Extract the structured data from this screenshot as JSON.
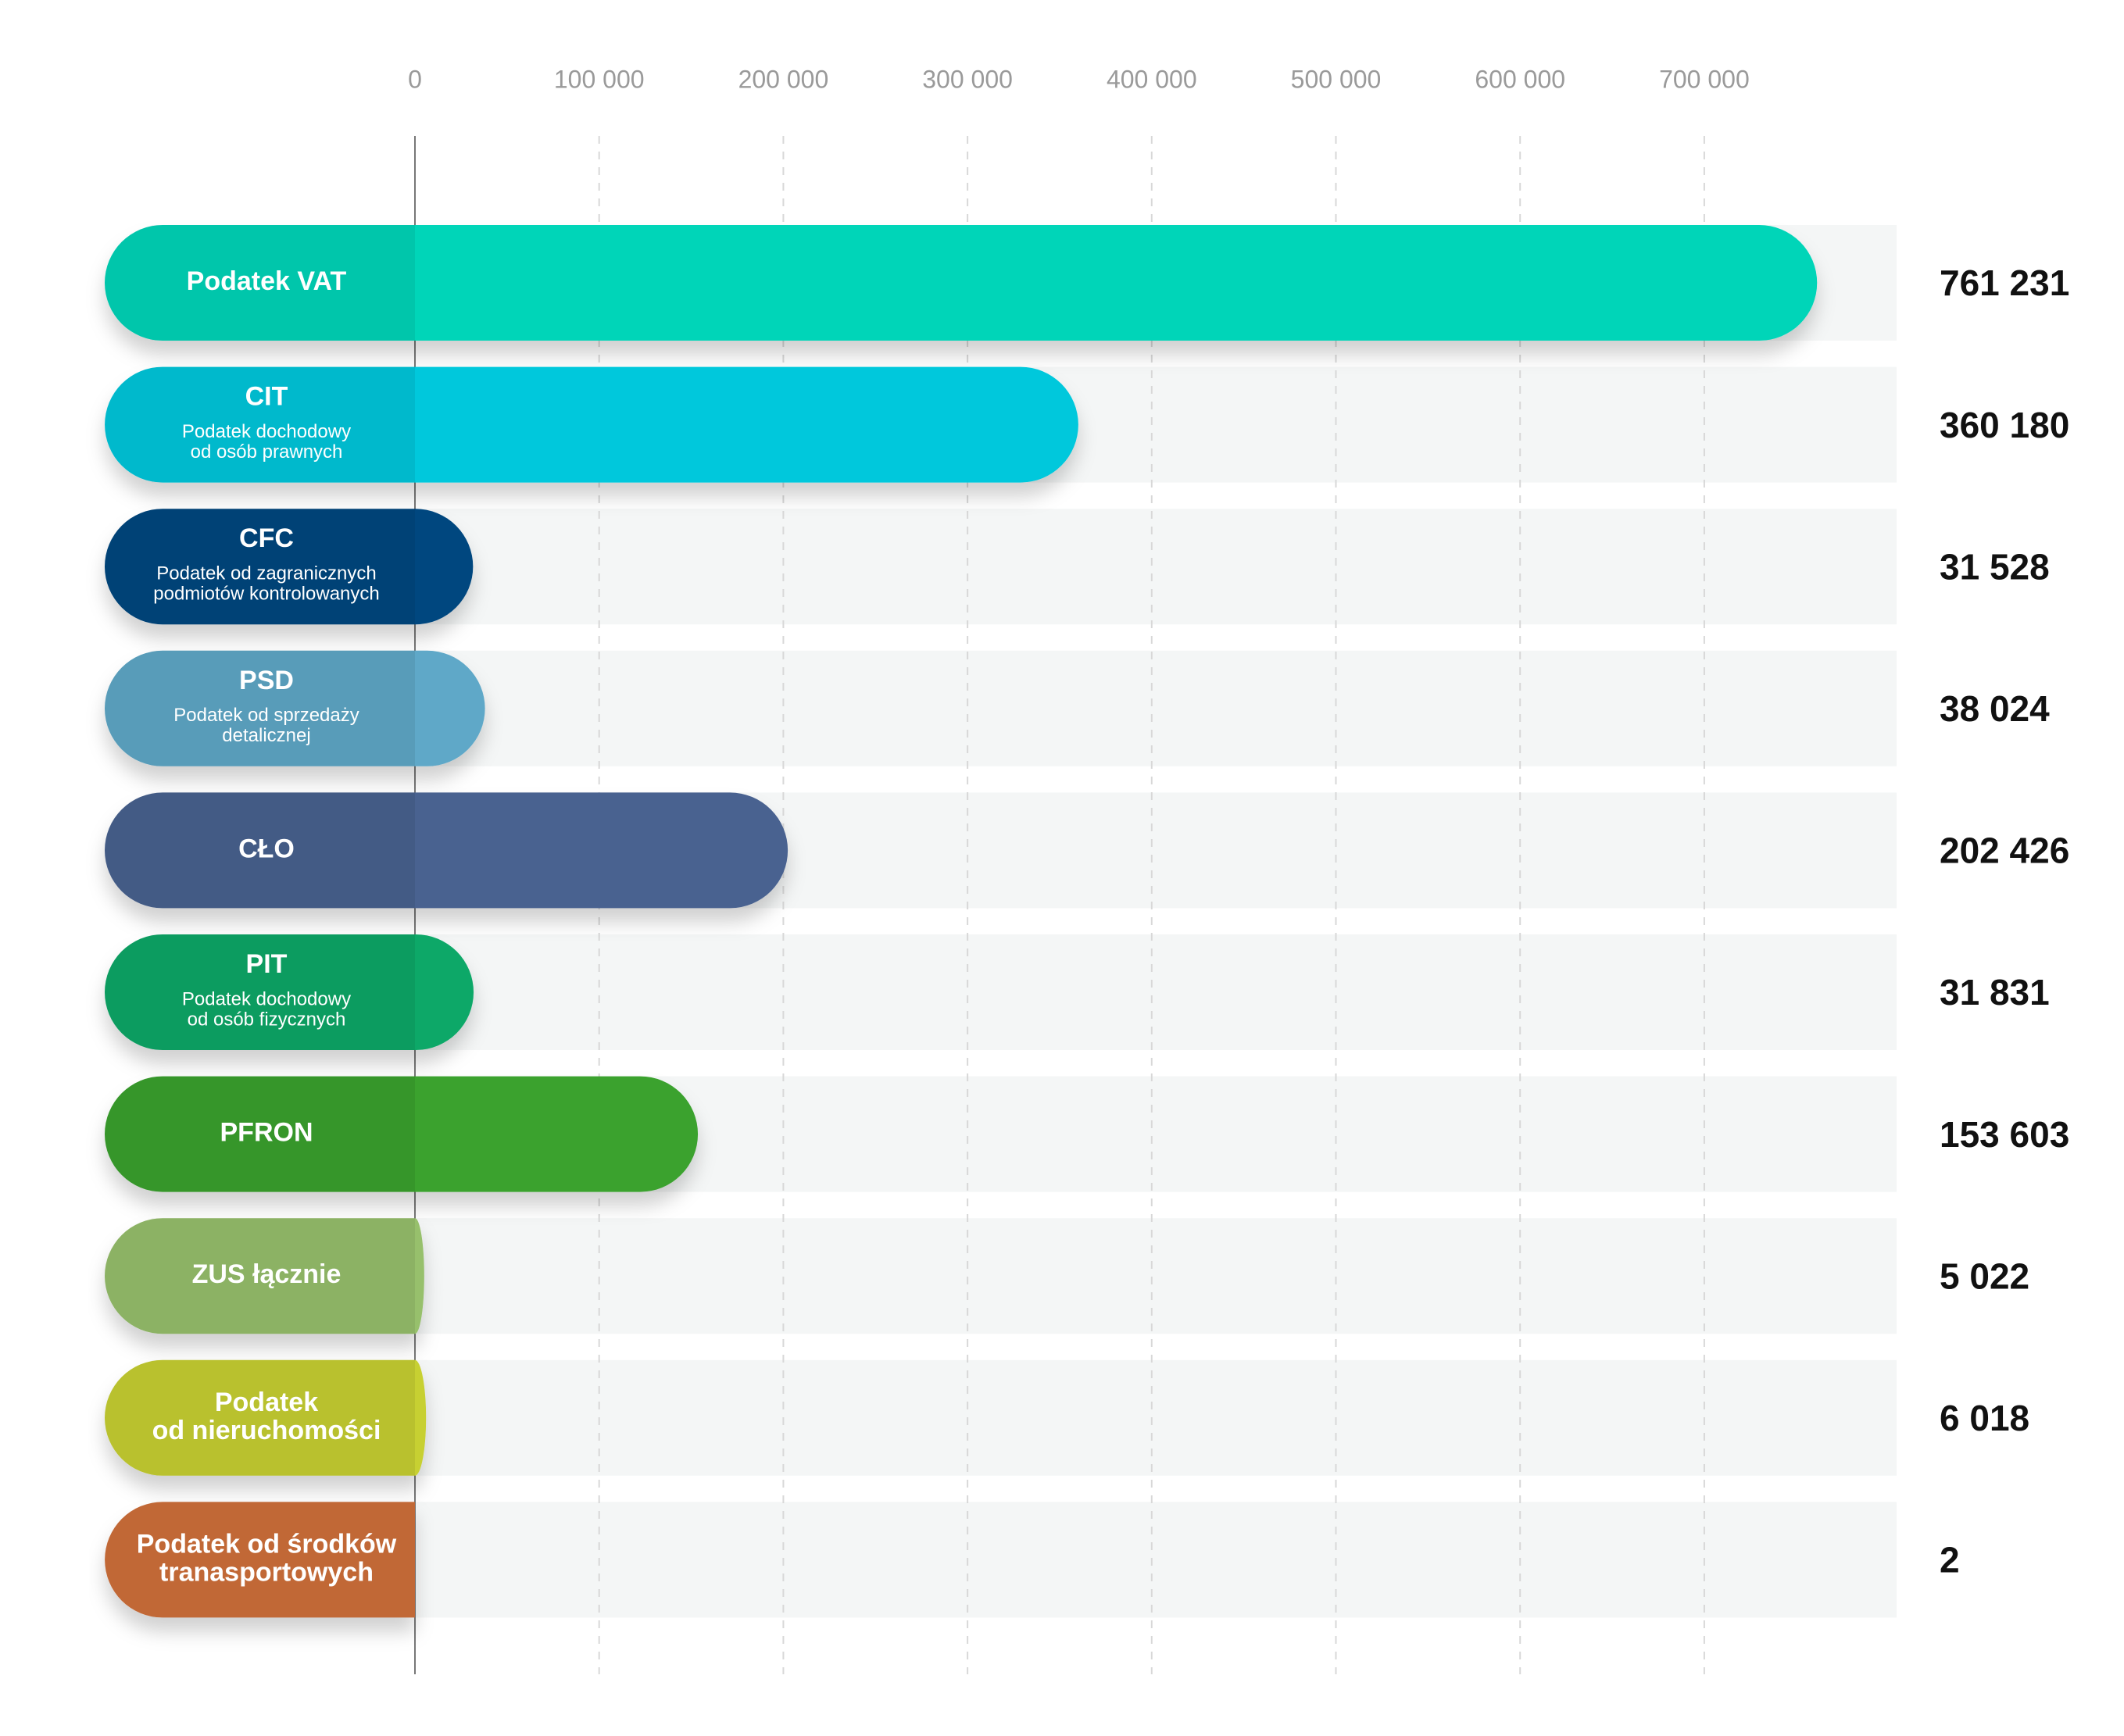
{
  "chart_data": {
    "type": "bar",
    "orientation": "horizontal",
    "categories": [
      [
        "Podatek VAT"
      ],
      [
        "CIT"
      ],
      [
        "CFC"
      ],
      [
        "PSD"
      ],
      [
        "CŁO"
      ],
      [
        "PIT"
      ],
      [
        "PFRON"
      ],
      [
        "ZUS łącznie"
      ],
      [
        "Podatek",
        "od nieruchomości"
      ],
      [
        "Podatek od środków",
        "tranasportowych"
      ]
    ],
    "subtitles": [
      null,
      [
        "Podatek dochodowy",
        "od osób prawnych"
      ],
      [
        "Podatek od zagranicznych",
        "podmiotów kontrolowanych"
      ],
      [
        "Podatek od sprzedaży",
        "detalicznej"
      ],
      null,
      [
        "Podatek dochodowy",
        "od osób fizycznych"
      ],
      null,
      null,
      null,
      null
    ],
    "values": [
      761231,
      360180,
      31528,
      38024,
      202426,
      31831,
      153603,
      5022,
      6018,
      2
    ],
    "value_labels": [
      "761 231",
      "360 180",
      "31 528",
      "38 024",
      "202 426",
      "31 831",
      "153 603",
      "5 022",
      "6 018",
      "2"
    ],
    "colors": [
      "#00d5b8",
      "#00c8dc",
      "#05477f",
      "#5ea8c8",
      "#4a6290",
      "#0ca867",
      "#3aa22e",
      "#97c06c",
      "#c7d032",
      "#d0703a"
    ],
    "xlim": [
      0,
      800000
    ],
    "xticks": [
      0,
      {
        "value": 100000,
        "label": "100 000"
      },
      {
        "value": 200000,
        "label": "200 000"
      },
      {
        "value": 300000,
        "label": "300 000"
      },
      {
        "value": 400000,
        "label": "400 000"
      },
      {
        "value": 500000,
        "label": "500 000"
      },
      {
        "value": 600000,
        "label": "600 000"
      },
      {
        "value": 700000,
        "label": "700 000"
      }
    ],
    "grid": true
  }
}
